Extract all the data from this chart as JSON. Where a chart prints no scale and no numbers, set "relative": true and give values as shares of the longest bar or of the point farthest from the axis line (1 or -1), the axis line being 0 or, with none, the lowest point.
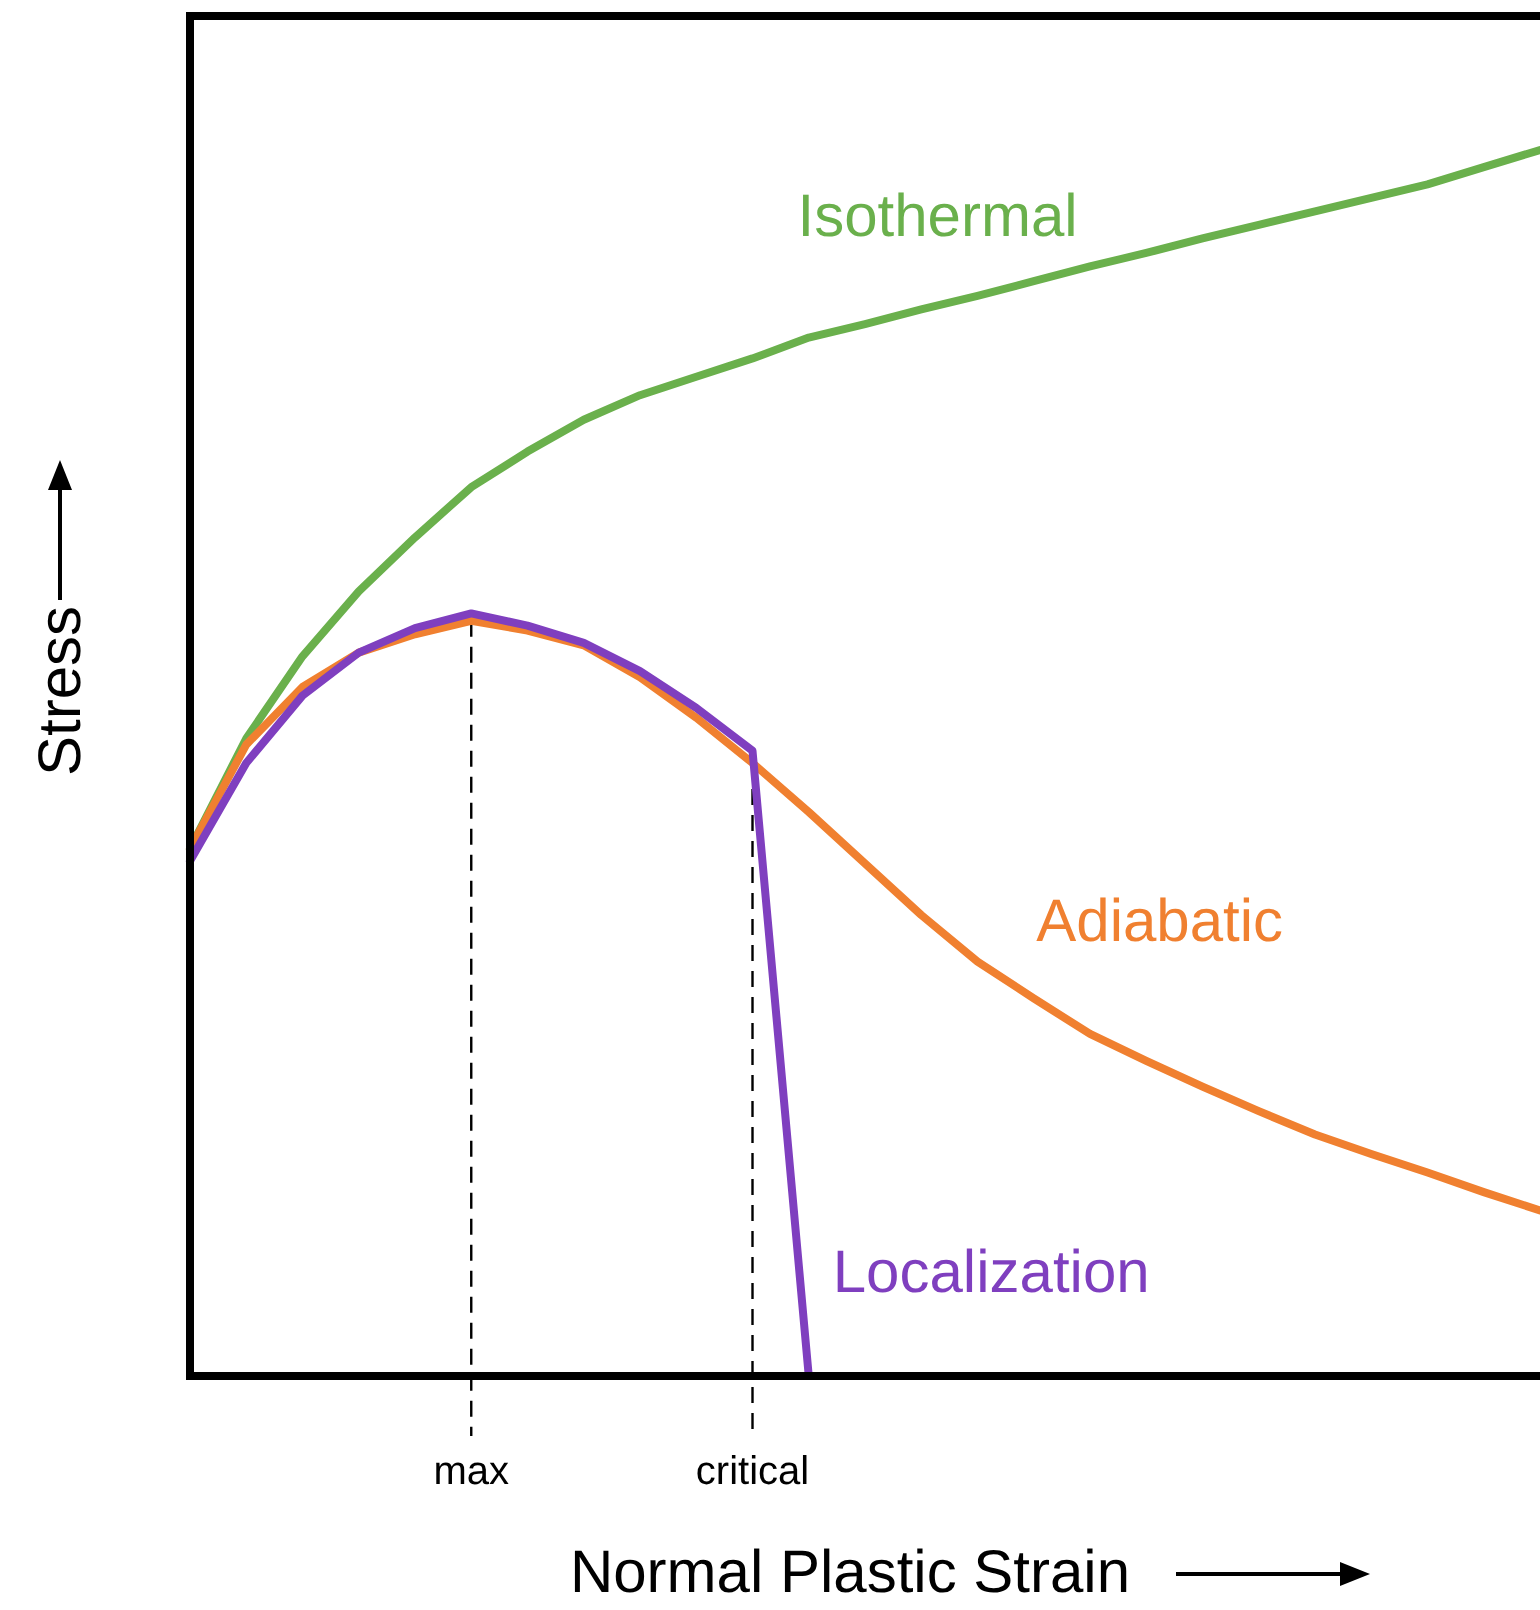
{
  "chart_data": {
    "type": "line",
    "relative": true,
    "xlabel": "Normal Plastic Strain",
    "ylabel": "Stress",
    "marker": "none",
    "line_style": "solid",
    "categories": [
      null,
      null,
      null,
      null,
      null,
      "max",
      null,
      null,
      null,
      null,
      "critical",
      null,
      null,
      null,
      null,
      null,
      null,
      null,
      null,
      null,
      null,
      null,
      null,
      null,
      null
    ],
    "series": [
      {
        "name": "Isothermal",
        "color": "#6ab04c",
        "values": [
          0.43,
          0.52,
          0.587,
          0.64,
          0.684,
          0.725,
          0.754,
          0.78,
          0.8,
          0.815,
          0.83,
          0.847,
          0.858,
          0.87,
          0.881,
          0.893,
          0.905,
          0.916,
          0.928,
          0.939,
          0.95,
          0.961,
          0.972,
          0.986,
          1
        ]
      },
      {
        "name": "Adiabatic",
        "color": "#f08030",
        "values": [
          0.43,
          0.515,
          0.562,
          0.59,
          0.605,
          0.616,
          0.608,
          0.596,
          0.57,
          0.537,
          0.5,
          0.46,
          0.418,
          0.376,
          0.338,
          0.308,
          0.279,
          0.257,
          0.236,
          0.216,
          0.197,
          0.181,
          0.166,
          0.15,
          0.135
        ]
      },
      {
        "name": "Localization",
        "color": "#7f3fbf",
        "values": [
          0.42,
          0.5,
          0.555,
          0.59,
          0.61,
          0.622,
          0.612,
          0.598,
          0.575,
          0.545,
          0.51,
          0,
          null,
          null,
          null,
          null,
          null,
          null,
          null,
          null,
          null,
          null,
          null,
          null,
          null
        ]
      }
    ],
    "ref_lines": [
      {
        "axis": "x",
        "value": "max",
        "line_style": "dashed",
        "color": "#000000"
      },
      {
        "axis": "x",
        "value": "critical",
        "line_style": "dashed",
        "color": "#000000"
      }
    ]
  }
}
